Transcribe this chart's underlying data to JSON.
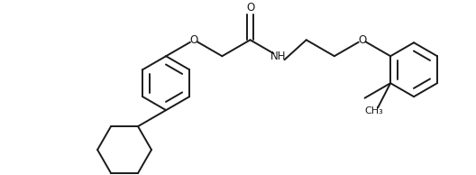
{
  "bg": "#ffffff",
  "lc": "#1a1a1a",
  "lw": 1.4,
  "fs": 8.5,
  "fig_w": 5.28,
  "fig_h": 1.94,
  "dpi": 100,
  "xlim": [
    0,
    528
  ],
  "ylim": [
    0,
    194
  ]
}
